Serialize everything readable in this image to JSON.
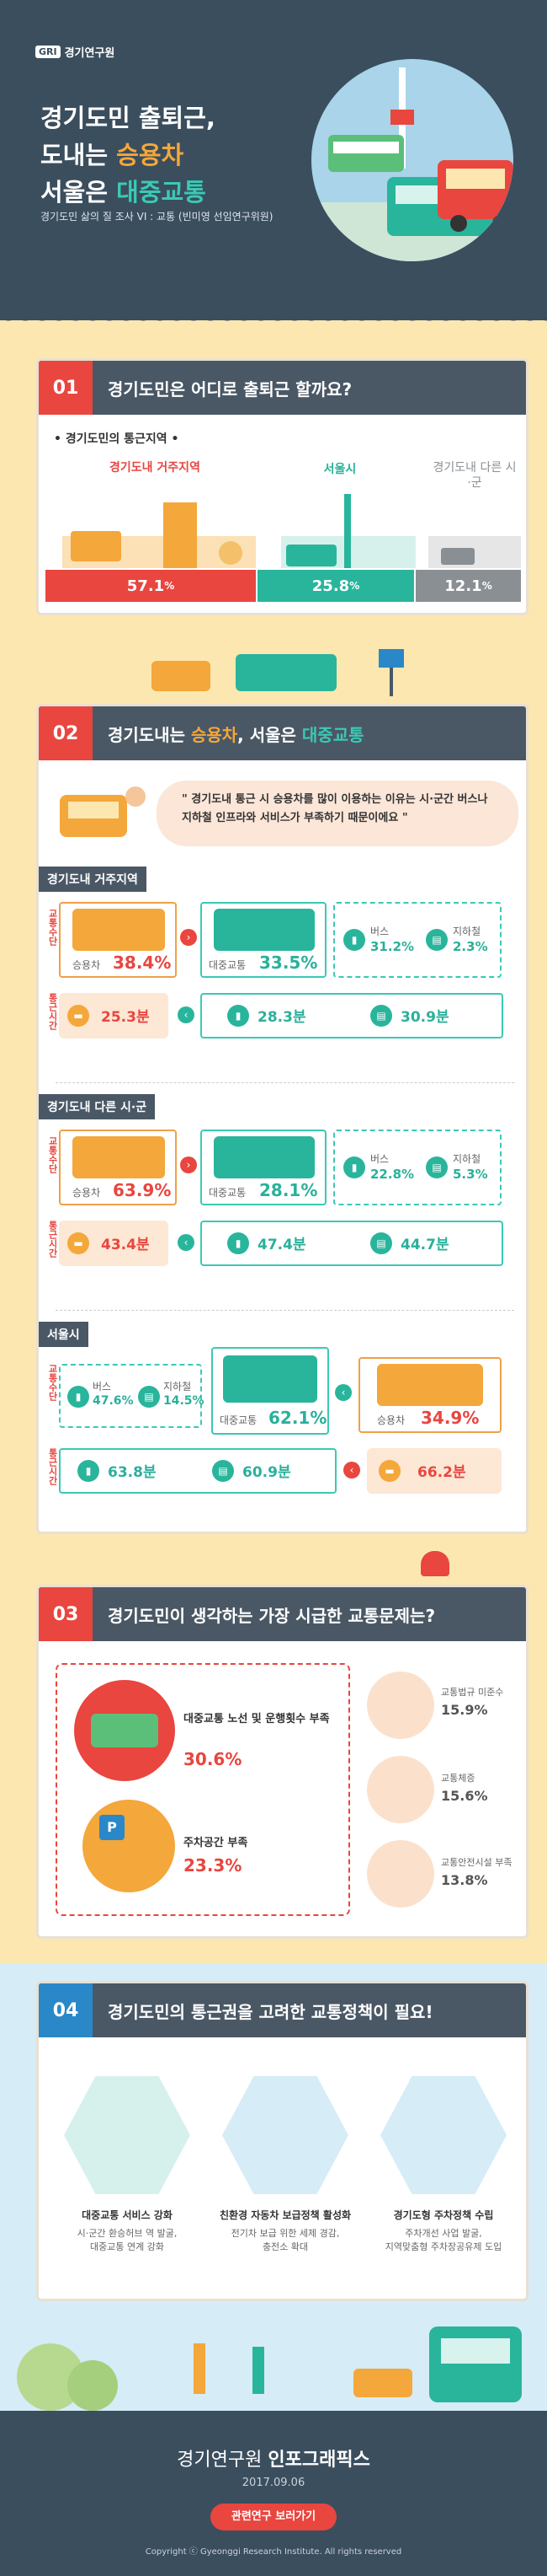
{
  "header": {
    "logo_mark": "GRI",
    "logo_text": "경기연구원",
    "title_line1": "경기도민 출퇴근,",
    "title_line2_pre": "도내는 ",
    "title_line2_hl": "승용차",
    "title_line3_pre": "서울은 ",
    "title_line3_hl": "대중교통",
    "subtitle": "경기도민 삶의 질 조사 VI : 교통 (빈미영 선임연구위원)"
  },
  "s1": {
    "num": "01",
    "title": "경기도민은 어디로 출퇴근 할까요?",
    "subhead": "• 경기도민의 통근지역 •",
    "regions": [
      {
        "label": "경기도내 거주지역",
        "value": "57.1",
        "unit": "%"
      },
      {
        "label": "서울시",
        "value": "25.8",
        "unit": "%"
      },
      {
        "label": "경기도내 다른 시·군",
        "value": "12.1",
        "unit": "%"
      }
    ]
  },
  "s2": {
    "num": "02",
    "title_pre": "경기도내는 ",
    "title_hl1": "승용차",
    "title_mid": ", 서울은 ",
    "title_hl2": "대중교통",
    "quote": "\" 경기도내 통근 시 승용차를 많이 이용하는 이유는 시·군간 버스나 지하철 인프라와 서비스가 부족하기 때문이에요 \"",
    "mode_label": "교통수단",
    "time_label": "통근시간",
    "groups": [
      {
        "tag": "경기도내 거주지역",
        "car": {
          "label": "승용차",
          "value": "38.4%"
        },
        "public": {
          "label": "대중교통",
          "value": "33.5%"
        },
        "bus": {
          "label": "버스",
          "value": "31.2%"
        },
        "subway": {
          "label": "지하철",
          "value": "2.3%"
        },
        "time_car": "25.3분",
        "time_bus": "28.3분",
        "time_subway": "30.9분"
      },
      {
        "tag": "경기도내 다른 시·군",
        "car": {
          "label": "승용차",
          "value": "63.9%"
        },
        "public": {
          "label": "대중교통",
          "value": "28.1%"
        },
        "bus": {
          "label": "버스",
          "value": "22.8%"
        },
        "subway": {
          "label": "지하철",
          "value": "5.3%"
        },
        "time_car": "43.4분",
        "time_bus": "47.4분",
        "time_subway": "44.7분"
      },
      {
        "tag": "서울시",
        "car": {
          "label": "승용차",
          "value": "34.9%"
        },
        "public": {
          "label": "대중교통",
          "value": "62.1%"
        },
        "bus": {
          "label": "버스",
          "value": "47.6%"
        },
        "subway": {
          "label": "지하철",
          "value": "14.5%"
        },
        "time_car": "66.2분",
        "time_bus": "63.8분",
        "time_subway": "60.9분"
      }
    ]
  },
  "s3": {
    "num": "03",
    "title": "경기도민이 생각하는 가장 시급한 교통문제는?",
    "main": [
      {
        "label": "대중교통 노선 및 운행횟수 부족",
        "value": "30.6%"
      },
      {
        "label": "주차공간 부족",
        "value": "23.3%"
      }
    ],
    "others": [
      {
        "label": "교통법규 미준수",
        "value": "15.9%"
      },
      {
        "label": "교통체증",
        "value": "15.6%"
      },
      {
        "label": "교통안전시설 부족",
        "value": "13.8%"
      }
    ]
  },
  "s4": {
    "num": "04",
    "title": "경기도민의 통근권을 고려한 교통정책이 필요!",
    "policies": [
      {
        "title": "대중교통 서비스 강화",
        "desc1": "시·군간 환승허브 역 발굴,",
        "desc2": "대중교통 연계 강화"
      },
      {
        "title": "친환경 자동차 보급정책 활성화",
        "desc1": "전기차 보급 위한 세제 경감,",
        "desc2": "충전소 확대"
      },
      {
        "title": "경기도형 주차정책 수립",
        "desc1": "주차개선 사업 발굴,",
        "desc2": "지역맞춤형 주차장공유제 도입"
      }
    ]
  },
  "footer": {
    "title_pre": "경기연구원 ",
    "title_bold": "인포그래픽스",
    "date": "2017.09.06",
    "button": "관련연구 보러가기",
    "copyright": "Copyright ⓒ Gyeonggi Research Institute. All rights reserved"
  },
  "colors": {
    "navy": "#3b4e5e",
    "red": "#e8463f",
    "orange": "#f4a73a",
    "teal": "#29b59c",
    "gray": "#8a8f94",
    "cream": "#fde7b0"
  }
}
